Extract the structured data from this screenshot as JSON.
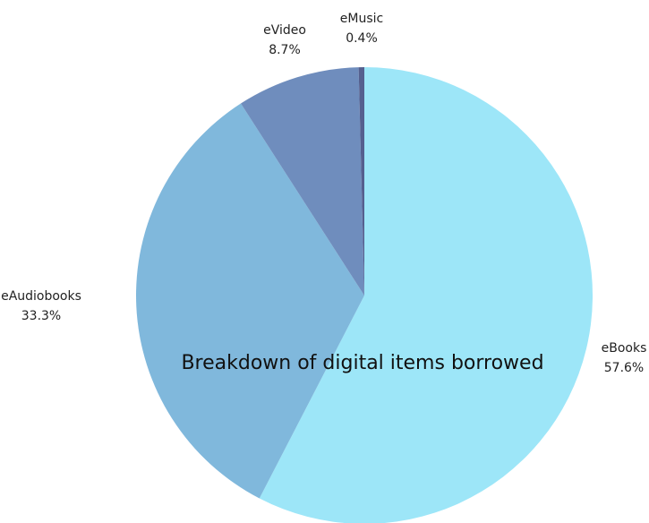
{
  "chart_data": {
    "type": "pie",
    "title": "Breakdown of digital items borrowed",
    "slices": [
      {
        "label": "eBooks",
        "value": 57.6,
        "value_label": "57.6%",
        "color": "#9de6f8"
      },
      {
        "label": "eAudiobooks",
        "value": 33.3,
        "value_label": "33.3%",
        "color": "#80b8dc"
      },
      {
        "label": "eVideo",
        "value": 8.7,
        "value_label": "8.7%",
        "color": "#6f8dbd"
      },
      {
        "label": "eMusic",
        "value": 0.4,
        "value_label": "0.4%",
        "color": "#55608f"
      }
    ],
    "start_angle_deg": 0,
    "direction": "clockwise"
  }
}
